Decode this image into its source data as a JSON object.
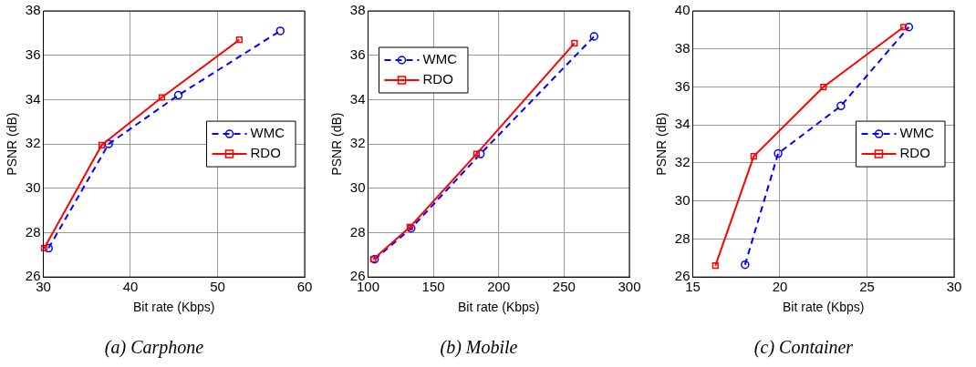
{
  "chart_data": [
    {
      "type": "line",
      "title": "(a) Carphone",
      "xlabel": "Bit rate (Kbps)",
      "ylabel": "PSNR (dB)",
      "xlim": [
        30,
        60
      ],
      "xticks": [
        30,
        40,
        50,
        60
      ],
      "ylim": [
        26,
        38
      ],
      "yticks": [
        26,
        28,
        30,
        32,
        34,
        36,
        38
      ],
      "grid": true,
      "legend": "right",
      "series": [
        {
          "name": "WMC",
          "color": "#0000ff",
          "marker": "circle",
          "line_style": "dashed",
          "x": [
            30.6,
            37.5,
            45.5,
            57.2
          ],
          "values": [
            27.3,
            32.0,
            34.2,
            37.1
          ]
        },
        {
          "name": "RDO",
          "color": "#ff0000",
          "marker": "square",
          "line_style": "solid",
          "x": [
            30.1,
            36.7,
            43.6,
            52.5
          ],
          "values": [
            27.3,
            31.95,
            34.1,
            36.7
          ]
        }
      ]
    },
    {
      "type": "line",
      "title": "(b) Mobile",
      "xlabel": "Bit rate (Kbps)",
      "ylabel": "PSNR (dB)",
      "xlim": [
        100,
        300
      ],
      "xticks": [
        100,
        150,
        200,
        250,
        300
      ],
      "ylim": [
        26,
        38
      ],
      "yticks": [
        26,
        28,
        30,
        32,
        34,
        36,
        38
      ],
      "grid": true,
      "legend": "top left",
      "series": [
        {
          "name": "WMC",
          "color": "#0000ff",
          "marker": "circle",
          "line_style": "dashed",
          "x": [
            105,
            133,
            186,
            273
          ],
          "values": [
            26.8,
            28.2,
            31.55,
            36.85
          ]
        },
        {
          "name": "RDO",
          "color": "#ff0000",
          "marker": "square",
          "line_style": "solid",
          "x": [
            104,
            132,
            183,
            258
          ],
          "values": [
            26.8,
            28.25,
            31.55,
            36.55
          ]
        }
      ]
    },
    {
      "type": "line",
      "title": "(c) Container",
      "xlabel": "Bit rate (Kbps)",
      "ylabel": "PSNR (dB)",
      "xlim": [
        15,
        30
      ],
      "xticks": [
        15,
        20,
        25,
        30
      ],
      "ylim": [
        26,
        40
      ],
      "yticks": [
        26,
        28,
        30,
        32,
        34,
        36,
        38,
        40
      ],
      "grid": true,
      "legend": "right",
      "series": [
        {
          "name": "WMC",
          "color": "#0000ff",
          "marker": "circle",
          "line_style": "dashed",
          "x": [
            18.0,
            19.9,
            23.5,
            27.4
          ],
          "values": [
            26.65,
            32.5,
            35.0,
            39.15
          ]
        },
        {
          "name": "RDO",
          "color": "#ff0000",
          "marker": "square",
          "line_style": "solid",
          "x": [
            16.3,
            18.5,
            22.5,
            27.1
          ],
          "values": [
            26.6,
            32.35,
            36.0,
            39.15
          ]
        }
      ]
    }
  ]
}
